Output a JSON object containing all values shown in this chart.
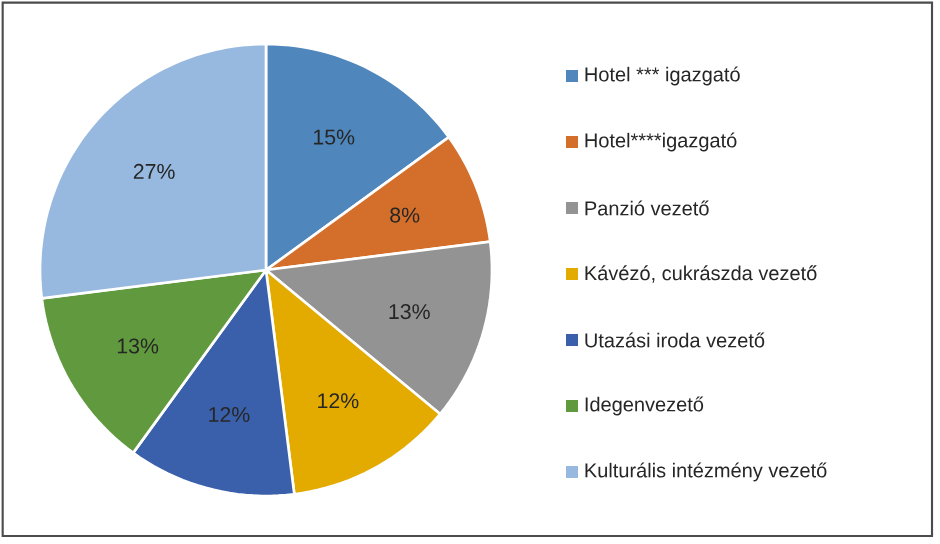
{
  "chart_data": {
    "type": "pie",
    "categories": [
      "Hotel *** igazgató",
      "Hotel****igazgató",
      "Panzió vezető",
      "Kávézó, cukrászda vezető",
      "Utazási iroda vezető",
      "Idegenvezető",
      "Kulturális intézmény vezető"
    ],
    "values": [
      15,
      8,
      13,
      12,
      12,
      13,
      27
    ],
    "value_labels": [
      "15%",
      "8%",
      "13%",
      "12%",
      "12%",
      "13%",
      "27%"
    ],
    "colors": [
      "#4f86bc",
      "#d46f2b",
      "#939393",
      "#e3aa00",
      "#3a60ab",
      "#619a3e",
      "#97b9e0"
    ],
    "legend": "right"
  }
}
